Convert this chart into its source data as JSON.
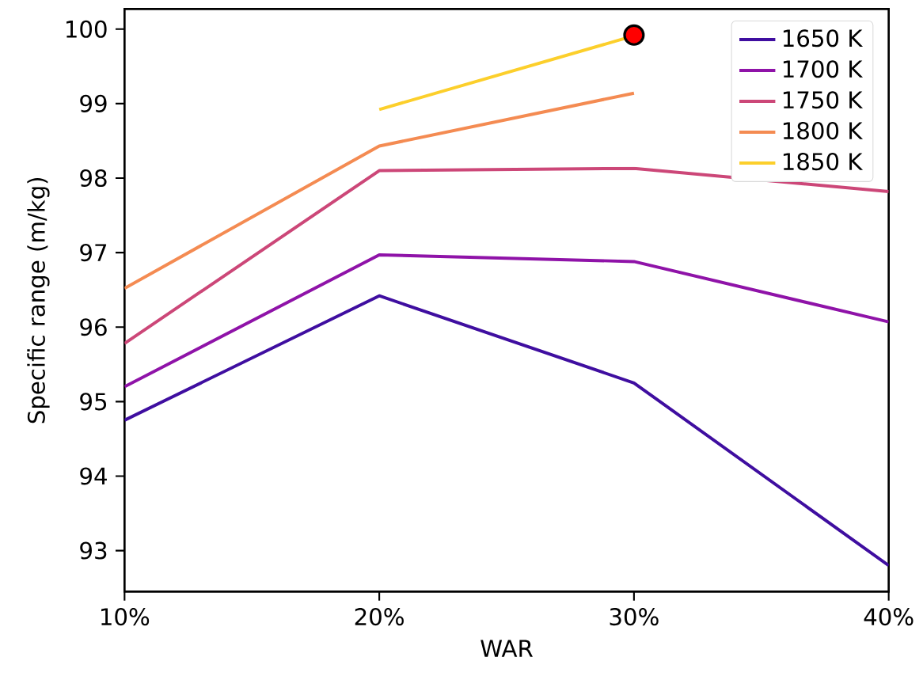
{
  "chart_data": {
    "type": "line",
    "xlabel": "WAR",
    "ylabel": "Specific range (m/kg)",
    "x": [
      10,
      20,
      30,
      40
    ],
    "xlim": [
      10,
      40
    ],
    "xticks": [
      {
        "value": 10,
        "label": "10%"
      },
      {
        "value": 20,
        "label": "20%"
      },
      {
        "value": 30,
        "label": "30%"
      },
      {
        "value": 40,
        "label": "40%"
      }
    ],
    "ylim": [
      92.45,
      100.27
    ],
    "yticks": [
      93,
      94,
      95,
      96,
      97,
      98,
      99,
      100
    ],
    "legend": "top right",
    "grid": false,
    "series": [
      {
        "name": "1650 K",
        "color": "#3f0ea0",
        "values": [
          94.75,
          96.42,
          95.25,
          92.8
        ]
      },
      {
        "name": "1700 K",
        "color": "#8f13a8",
        "values": [
          95.2,
          96.97,
          96.88,
          96.07
        ]
      },
      {
        "name": "1750 K",
        "color": "#cc4778",
        "values": [
          95.78,
          98.1,
          98.13,
          97.82
        ]
      },
      {
        "name": "1800 K",
        "color": "#f48b52",
        "values": [
          96.52,
          98.43,
          99.14,
          null
        ]
      },
      {
        "name": "1850 K",
        "color": "#fccf2b",
        "values": [
          null,
          98.92,
          99.91,
          null
        ]
      },
      {
        "type": "scatter",
        "color": "#ff0000",
        "marker": "circle",
        "x": [
          30
        ],
        "values": [
          99.92
        ]
      }
    ]
  }
}
